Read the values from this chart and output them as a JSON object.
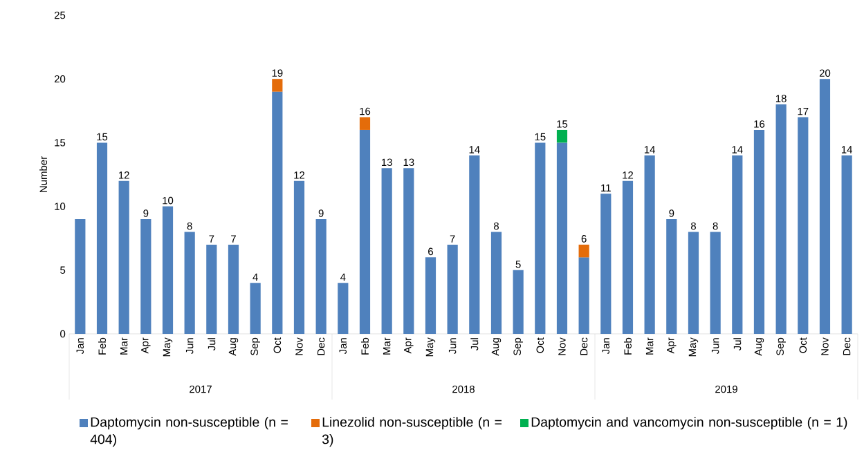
{
  "chart_data": {
    "type": "bar",
    "stacked": true,
    "ylabel": "Number",
    "categories": [
      "Jan",
      "Feb",
      "Mar",
      "Apr",
      "May",
      "Jun",
      "Jul",
      "Aug",
      "Sep",
      "Oct",
      "Nov",
      "Dec",
      "Jan",
      "Feb",
      "Mar",
      "Apr",
      "May",
      "Jun",
      "Jul",
      "Aug",
      "Sep",
      "Oct",
      "Nov",
      "Dec",
      "Jan",
      "Feb",
      "Mar",
      "Apr",
      "May",
      "Jun",
      "Jul",
      "Aug",
      "Sep",
      "Oct",
      "Nov",
      "Dec"
    ],
    "annotations": [
      "2017",
      "2018",
      "2019"
    ],
    "series": [
      {
        "name": "Daptomycin non-susceptible (n = 404)",
        "color": "#4f81bd",
        "values": [
          9,
          15,
          12,
          9,
          10,
          8,
          7,
          7,
          4,
          19,
          12,
          9,
          4,
          16,
          13,
          13,
          6,
          7,
          14,
          8,
          5,
          15,
          15,
          6,
          11,
          12,
          14,
          9,
          8,
          8,
          14,
          16,
          18,
          17,
          20,
          14
        ],
        "value_labels": [
          null,
          "15",
          "12",
          "9",
          "10",
          "8",
          "7",
          "7",
          "4",
          "19",
          "12",
          "9",
          "4",
          "16",
          "13",
          "13",
          "6",
          "7",
          "14",
          "8",
          "5",
          "15",
          "15",
          "6",
          "11",
          "12",
          "14",
          "9",
          "8",
          "8",
          "14",
          "16",
          "18",
          "17",
          "20",
          "14"
        ]
      },
      {
        "name": "Linezolid non-susceptible (n = 3)",
        "color": "#e46c0a",
        "values": [
          null,
          null,
          null,
          null,
          null,
          null,
          null,
          null,
          null,
          1,
          null,
          null,
          null,
          1,
          null,
          null,
          null,
          null,
          null,
          null,
          null,
          null,
          null,
          1,
          null,
          null,
          null,
          null,
          null,
          null,
          null,
          null,
          null,
          null,
          null,
          null
        ]
      },
      {
        "name": "Daptomycin and vancomycin non-susceptible (n = 1)",
        "color": "#00b050",
        "values": [
          null,
          null,
          null,
          null,
          null,
          null,
          null,
          null,
          null,
          null,
          null,
          null,
          null,
          null,
          null,
          null,
          null,
          null,
          null,
          null,
          null,
          null,
          1,
          null,
          null,
          null,
          null,
          null,
          null,
          null,
          null,
          null,
          null,
          null,
          null,
          null
        ]
      }
    ],
    "ylim": [
      0,
      25
    ],
    "yticks": [
      0,
      5,
      10,
      15,
      20,
      25
    ],
    "grid": false,
    "legend": "bottom"
  }
}
